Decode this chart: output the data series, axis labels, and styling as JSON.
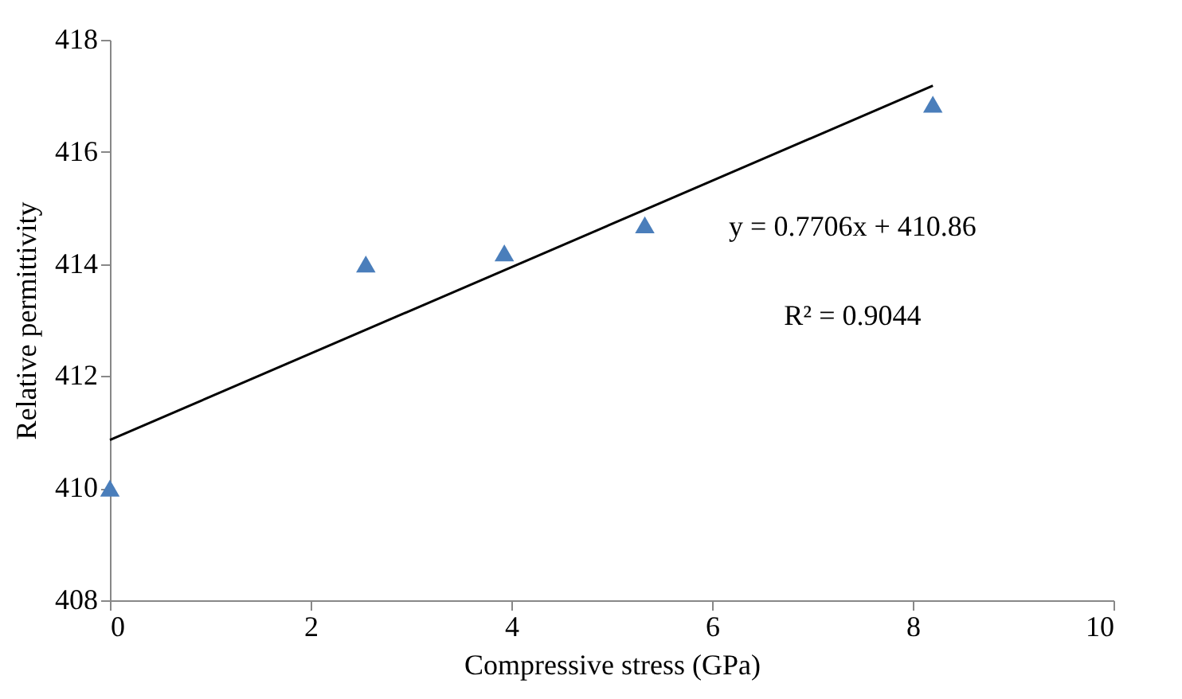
{
  "chart_data": {
    "type": "scatter",
    "xlabel": "Compressive stress (GPa)",
    "ylabel": "Relative permittivity",
    "xlim": [
      0,
      10
    ],
    "xticks": [
      0,
      2,
      4,
      6,
      8,
      10
    ],
    "ylim": [
      408,
      418
    ],
    "yticks": [
      408,
      410,
      412,
      414,
      416,
      418
    ],
    "grid": false,
    "marker": "triangle",
    "series": [
      {
        "color": "#4a7ebb",
        "x": [
          0,
          2.55,
          3.93,
          5.33,
          8.2
        ],
        "values": [
          410.0,
          414.0,
          414.2,
          414.7,
          416.85
        ]
      },
      {
        "type": "line",
        "marker": "none",
        "color": "#000000",
        "x": [
          0,
          8.2
        ],
        "values": [
          410.86,
          417.18
        ],
        "line_style": "solid"
      }
    ],
    "annotations": [
      "y = 0.7706x + 410.86",
      "R² = 0.9044"
    ]
  }
}
